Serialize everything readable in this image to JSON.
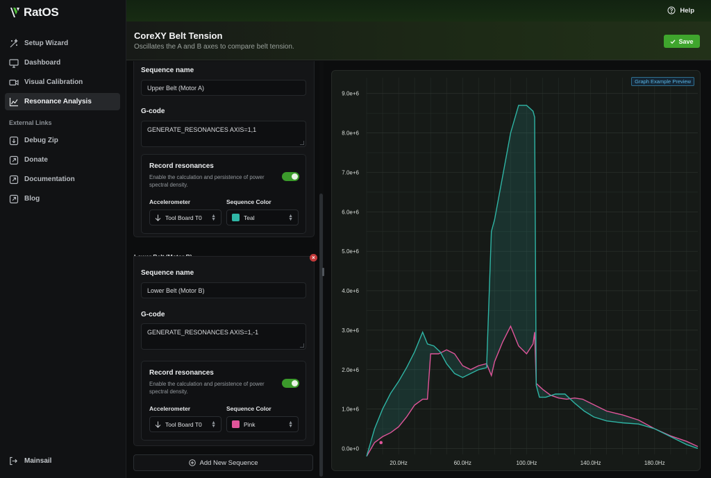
{
  "app": {
    "name": "RatOS"
  },
  "sidebar": {
    "items": [
      {
        "label": "Setup Wizard",
        "icon": "wand-icon",
        "active": false
      },
      {
        "label": "Dashboard",
        "icon": "monitor-icon",
        "active": false
      },
      {
        "label": "Visual Calibration",
        "icon": "camera-icon",
        "active": false
      },
      {
        "label": "Resonance Analysis",
        "icon": "chart-icon",
        "active": true
      }
    ],
    "external_title": "External Links",
    "external": [
      {
        "label": "Debug Zip",
        "icon": "download-icon"
      },
      {
        "label": "Donate",
        "icon": "external-link-icon"
      },
      {
        "label": "Documentation",
        "icon": "external-link-icon"
      },
      {
        "label": "Blog",
        "icon": "external-link-icon"
      }
    ],
    "bottom_label": "Mainsail"
  },
  "topbar": {
    "help_label": "Help"
  },
  "header": {
    "title": "CoreXY Belt Tension",
    "subtitle": "Oscillates the A and B axes to compare belt tension.",
    "save_label": "Save"
  },
  "sequences": [
    {
      "tag": "",
      "name_label": "Sequence name",
      "name": "Upper Belt (Motor A)",
      "gcode_label": "G-code",
      "gcode": "GENERATE_RESONANCES AXIS=1,1",
      "rr_title": "Record resonances",
      "rr_desc": "Enable the calculation and persistence of power spectral density.",
      "accel_label": "Accelerometer",
      "accel": "Tool Board T0",
      "color_label": "Sequence Color",
      "color_name": "Teal",
      "color": "#2fb5a5"
    },
    {
      "tag": "Lower Belt (Motor B)",
      "name_label": "Sequence name",
      "name": "Lower Belt (Motor B)",
      "gcode_label": "G-code",
      "gcode": "GENERATE_RESONANCES AXIS=1,-1",
      "rr_title": "Record resonances",
      "rr_desc": "Enable the calculation and persistence of power spectral density.",
      "accel_label": "Accelerometer",
      "accel": "Tool Board T0",
      "color_label": "Sequence Color",
      "color_name": "Pink",
      "color": "#e0559a"
    }
  ],
  "add_sequence_label": "Add New Sequence",
  "graph": {
    "badge": "Graph Example Preview"
  },
  "chart_data": {
    "type": "area",
    "xlabel": "",
    "ylabel": "",
    "xlim": [
      0,
      207
    ],
    "ylim": [
      -0.15,
      9.4
    ],
    "x_ticks": [
      20,
      60,
      100,
      140,
      180
    ],
    "x_tick_labels": [
      "20.0Hz",
      "60.0Hz",
      "100.0Hz",
      "140.0Hz",
      "180.0Hz"
    ],
    "y_ticks": [
      0,
      1,
      2,
      3,
      4,
      5,
      6,
      7,
      8,
      9
    ],
    "y_tick_labels": [
      "0.0e+0",
      "1.0e+6",
      "2.0e+6",
      "3.0e+6",
      "4.0e+6",
      "5.0e+6",
      "6.0e+6",
      "7.0e+6",
      "8.0e+6",
      "9.0e+6"
    ],
    "grid": true,
    "series": [
      {
        "name": "Upper Belt (Motor A)",
        "color": "#2fb5a5",
        "x": [
          0,
          5,
          10,
          15,
          20,
          25,
          30,
          35,
          38,
          42,
          46,
          50,
          55,
          60,
          65,
          70,
          75,
          78,
          80,
          85,
          90,
          95,
          100,
          104,
          105,
          106,
          108,
          112,
          118,
          124,
          130,
          136,
          142,
          150,
          160,
          170,
          180,
          190,
          200,
          207
        ],
        "y": [
          -0.2,
          0.5,
          1.0,
          1.4,
          1.7,
          2.05,
          2.45,
          2.95,
          2.65,
          2.6,
          2.45,
          2.15,
          1.9,
          1.8,
          1.9,
          2.0,
          2.05,
          5.5,
          5.8,
          6.9,
          8.0,
          8.7,
          8.7,
          8.55,
          8.4,
          1.6,
          1.3,
          1.3,
          1.38,
          1.38,
          1.15,
          0.95,
          0.8,
          0.7,
          0.65,
          0.62,
          0.5,
          0.3,
          0.1,
          0.0
        ]
      },
      {
        "name": "Lower Belt (Motor B)",
        "color": "#e0559a",
        "x": [
          0,
          5,
          10,
          15,
          20,
          25,
          30,
          35,
          38,
          40,
          45,
          50,
          55,
          60,
          65,
          70,
          75,
          78,
          80,
          85,
          90,
          95,
          100,
          104,
          105,
          106,
          110,
          115,
          120,
          125,
          130,
          135,
          140,
          150,
          160,
          170,
          180,
          190,
          200,
          207
        ],
        "y": [
          -0.2,
          0.15,
          0.3,
          0.4,
          0.55,
          0.8,
          1.1,
          1.25,
          1.25,
          2.4,
          2.4,
          2.5,
          2.4,
          2.1,
          2.0,
          2.1,
          2.15,
          1.85,
          2.2,
          2.7,
          3.1,
          2.6,
          2.4,
          2.65,
          2.95,
          1.65,
          1.5,
          1.35,
          1.28,
          1.25,
          1.28,
          1.25,
          1.15,
          0.95,
          0.85,
          0.72,
          0.5,
          0.32,
          0.18,
          0.05
        ]
      }
    ],
    "marker": {
      "x": 9,
      "y": 0.15
    }
  }
}
